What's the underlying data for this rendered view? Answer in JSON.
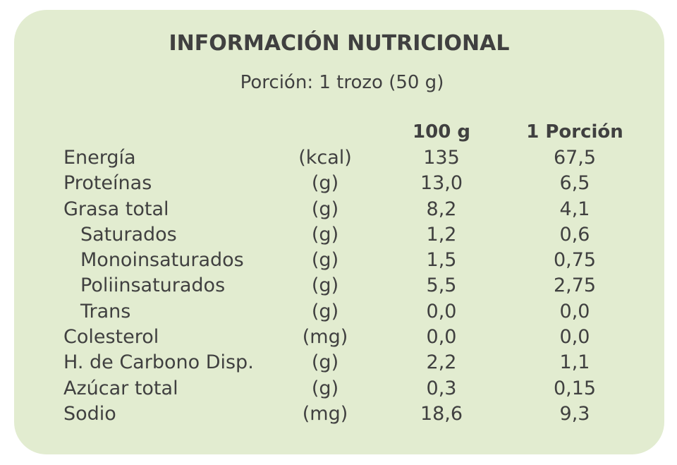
{
  "title": "INFORMACIÓN NUTRICIONAL",
  "serving": "Porción: 1 trozo (50 g)",
  "columns": {
    "per100": "100 g",
    "perServing": "1 Porción"
  },
  "rows": [
    {
      "name": "Energía",
      "unit": "(kcal)",
      "per100": "135",
      "perServing": "67,5",
      "indent": false
    },
    {
      "name": "Proteínas",
      "unit": "(g)",
      "per100": "13,0",
      "perServing": "6,5",
      "indent": false
    },
    {
      "name": "Grasa total",
      "unit": "(g)",
      "per100": "8,2",
      "perServing": "4,1",
      "indent": false
    },
    {
      "name": "Saturados",
      "unit": "(g)",
      "per100": "1,2",
      "perServing": "0,6",
      "indent": true
    },
    {
      "name": "Monoinsaturados",
      "unit": "(g)",
      "per100": "1,5",
      "perServing": "0,75",
      "indent": true
    },
    {
      "name": "Poliinsaturados",
      "unit": "(g)",
      "per100": "5,5",
      "perServing": "2,75",
      "indent": true
    },
    {
      "name": "Trans",
      "unit": "(g)",
      "per100": "0,0",
      "perServing": "0,0",
      "indent": true
    },
    {
      "name": "Colesterol",
      "unit": "(mg)",
      "per100": "0,0",
      "perServing": "0,0",
      "indent": false
    },
    {
      "name": "H. de Carbono Disp.",
      "unit": "(g)",
      "per100": "2,2",
      "perServing": "1,1",
      "indent": false
    },
    {
      "name": "Azúcar total",
      "unit": "(g)",
      "per100": "0,3",
      "perServing": "0,15",
      "indent": false
    },
    {
      "name": "Sodio",
      "unit": "(mg)",
      "per100": "18,6",
      "perServing": "9,3",
      "indent": false
    }
  ],
  "colors": {
    "panel": "#e2ecd0",
    "text": "#404040",
    "background": "#ffffff"
  }
}
